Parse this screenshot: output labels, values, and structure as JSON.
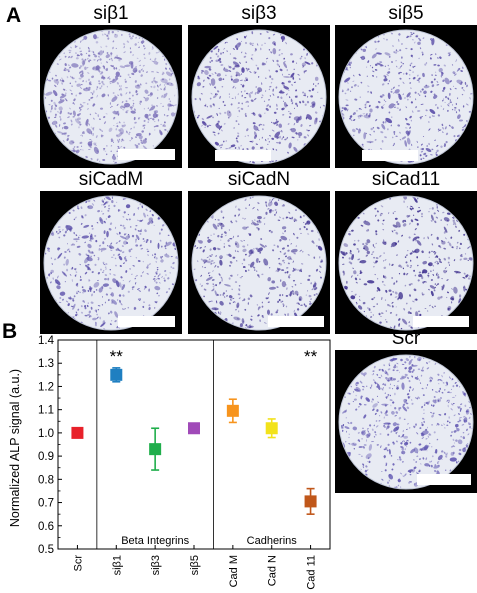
{
  "panel_a": {
    "letter": "A",
    "tiles": [
      {
        "label": "siβ1",
        "stain": "#7a6fb8",
        "density": 0.85
      },
      {
        "label": "siβ3",
        "stain": "#4f3f9e",
        "density": 0.55
      },
      {
        "label": "siβ5",
        "stain": "#5a4ea8",
        "density": 0.5
      },
      {
        "label": "siCadM",
        "stain": "#5b50aa",
        "density": 0.6
      },
      {
        "label": "siCadN",
        "stain": "#4a3d98",
        "density": 0.5
      },
      {
        "label": "siCad11",
        "stain": "#3d2f8e",
        "density": 0.45
      },
      {
        "label": "Scr",
        "stain": "#5f55b0",
        "density": 0.75
      }
    ]
  },
  "panel_b": {
    "letter": "B",
    "chart_data": {
      "type": "scatter",
      "ylabel": "Normalized ALP signal (a.u.)",
      "ylim": [
        0.5,
        1.4
      ],
      "yticks": [
        "0.5",
        "0.6",
        "0.7",
        "0.8",
        "0.9",
        "1.0",
        "1.1",
        "1.2",
        "1.3",
        "1.4"
      ],
      "categories": [
        "Scr",
        "siβ1",
        "siβ3",
        "siβ5",
        "Cad M",
        "Cad N",
        "Cad 11"
      ],
      "points": [
        {
          "category": "Scr",
          "value": 1.0,
          "err": 0.0,
          "color": "#e8212a"
        },
        {
          "category": "siβ1",
          "value": 1.25,
          "err": 0.03,
          "color": "#1f7fc1"
        },
        {
          "category": "siβ3",
          "value": 0.93,
          "err": 0.09,
          "color": "#1fae4b"
        },
        {
          "category": "siβ5",
          "value": 1.02,
          "err": 0.0,
          "color": "#a04ab8"
        },
        {
          "category": "Cad M",
          "value": 1.095,
          "err": 0.05,
          "color": "#f7941d"
        },
        {
          "category": "Cad N",
          "value": 1.02,
          "err": 0.04,
          "color": "#f2e21b"
        },
        {
          "category": "Cad 11",
          "value": 0.705,
          "err": 0.055,
          "color": "#c0571a"
        }
      ],
      "group_labels": [
        {
          "text": "Beta Integrins"
        },
        {
          "text": "Cadherins"
        }
      ],
      "annotations": [
        {
          "text": "**",
          "category": "siβ1"
        },
        {
          "text": "**",
          "category": "Cad 11"
        }
      ]
    }
  }
}
